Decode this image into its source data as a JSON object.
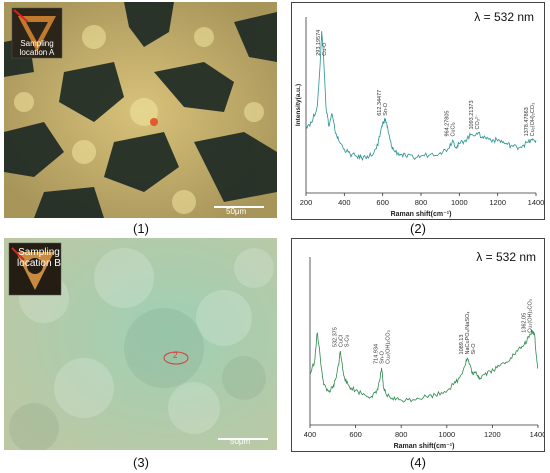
{
  "captions": [
    "(1)",
    "(2)",
    "(3)",
    "(4)"
  ],
  "micro1": {
    "label": "Sampling location A",
    "scale": "50μm"
  },
  "micro3": {
    "label": "Sampling location B",
    "scale": "50μm",
    "marker": "2"
  },
  "chart_data": [
    {
      "type": "line",
      "title": "λ = 532 nm",
      "xlabel": "Raman shift(cm⁻¹)",
      "ylabel": "Intensity(a.u.)",
      "xlim": [
        200,
        1400
      ],
      "ylim": [
        0,
        100
      ],
      "xticks": [
        200,
        400,
        600,
        800,
        1000,
        1200,
        1400
      ],
      "grid": false,
      "color": "#2a9090",
      "series": [
        {
          "x": [
            200,
            230,
            260,
            272,
            282,
            292,
            305,
            320,
            335,
            350,
            370,
            400,
            430,
            460,
            490,
            520,
            550,
            575,
            595,
            610,
            620,
            630,
            645,
            660,
            690,
            720,
            760,
            800,
            850,
            900,
            940,
            965,
            985,
            1000,
            1030,
            1060,
            1090,
            1120,
            1150,
            1180,
            1210,
            1240,
            1270,
            1300,
            1330,
            1360,
            1380,
            1400
          ],
          "y": [
            38,
            40,
            50,
            70,
            92,
            78,
            48,
            38,
            45,
            36,
            30,
            25,
            22,
            21,
            20,
            21,
            22,
            27,
            38,
            42,
            40,
            34,
            27,
            24,
            22,
            21,
            20,
            21,
            22,
            23,
            25,
            30,
            26,
            28,
            30,
            33,
            34,
            32,
            31,
            30,
            30,
            28,
            27,
            26,
            27,
            29,
            30,
            30
          ]
        }
      ],
      "annotations": [
        {
          "x": 293,
          "text": "293.19574"
        },
        {
          "x": 293,
          "text": "Cu-O"
        },
        {
          "x": 612,
          "text": "612.34477"
        },
        {
          "x": 612,
          "text": "Sn-O"
        },
        {
          "x": 964,
          "text": "964.27805"
        },
        {
          "x": 964,
          "text": "CuCl₂"
        },
        {
          "x": 1093,
          "text": "1093.21373"
        },
        {
          "x": 1093,
          "text": "CO₃²⁻"
        },
        {
          "x": 1378,
          "text": "1378.47863"
        },
        {
          "x": 1378,
          "text": "Cu₂(OH)₂CO₃"
        }
      ]
    },
    {
      "type": "line",
      "title": "λ = 532 nm",
      "xlabel": "Raman shift(cm⁻¹)",
      "ylabel": "",
      "xlim": [
        400,
        1400
      ],
      "ylim": [
        0,
        100
      ],
      "xticks": [
        400,
        600,
        800,
        1000,
        1200,
        1400
      ],
      "grid": false,
      "color": "#2e8a4e",
      "series": [
        {
          "x": [
            400,
            420,
            432,
            445,
            460,
            480,
            500,
            515,
            525,
            533,
            545,
            560,
            580,
            610,
            640,
            670,
            690,
            705,
            714,
            722,
            735,
            760,
            790,
            830,
            870,
            910,
            950,
            990,
            1030,
            1055,
            1075,
            1090,
            1100,
            1115,
            1130,
            1145,
            1160,
            1190,
            1220,
            1250,
            1280,
            1310,
            1340,
            1360,
            1375,
            1385,
            1395,
            1400
          ],
          "y": [
            30,
            38,
            55,
            40,
            24,
            20,
            22,
            28,
            36,
            44,
            32,
            25,
            22,
            20,
            18,
            17,
            19,
            26,
            34,
            22,
            18,
            16,
            15,
            15,
            16,
            17,
            18,
            20,
            24,
            28,
            34,
            40,
            36,
            30,
            31,
            28,
            30,
            32,
            34,
            37,
            40,
            44,
            48,
            52,
            56,
            54,
            38,
            34
          ]
        }
      ],
      "annotations": [
        {
          "x": 533,
          "text": "532.375"
        },
        {
          "x": 533,
          "text": "CuCl"
        },
        {
          "x": 533,
          "text": "S-Cu"
        },
        {
          "x": 714,
          "text": "714.934"
        },
        {
          "x": 714,
          "text": "Sn-O"
        },
        {
          "x": 714,
          "text": "Cu₂(OH)₂CO₃"
        },
        {
          "x": 1089,
          "text": "1089.13"
        },
        {
          "x": 1089,
          "text": "NaCuPO₄/NaSO₄"
        },
        {
          "x": 1089,
          "text": "Si-O"
        },
        {
          "x": 1362,
          "text": "1362.05"
        },
        {
          "x": 1362,
          "text": "Cu₂(OH)₂CO₃"
        }
      ]
    }
  ]
}
